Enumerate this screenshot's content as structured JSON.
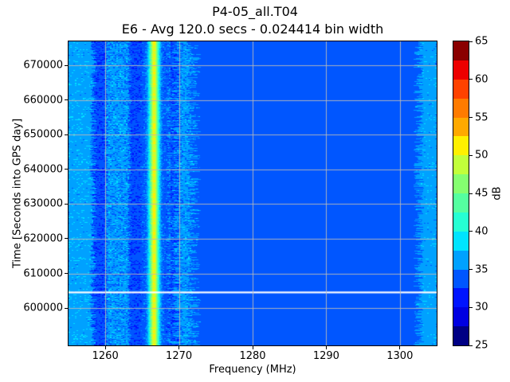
{
  "figure": {
    "title": "P4-05_all.T04"
  },
  "chart_data": {
    "type": "heatmap",
    "title": "E6 - Avg 120.0 secs - 0.024414 bin width",
    "xlabel": "Frequency (MHz)",
    "ylabel": "Time [Seconds into GPS day]",
    "x_range": [
      1255.0,
      1305.0
    ],
    "y_range": [
      589200,
      677000
    ],
    "xticks": [
      1260,
      1270,
      1280,
      1290,
      1300
    ],
    "yticks": [
      600000,
      610000,
      620000,
      630000,
      640000,
      650000,
      660000,
      670000
    ],
    "grid": true,
    "grid_color": "#b9b9b9",
    "background_level_db": 33.6,
    "colorbar": {
      "label": "dB",
      "vmin": 25,
      "vmax": 65,
      "ticks": [
        25,
        30,
        35,
        40,
        45,
        50,
        55,
        60,
        65
      ],
      "levels": 16,
      "colors": [
        "#000084",
        "#0000e1",
        "#0014ff",
        "#0056ff",
        "#00a1ff",
        "#00e4ff",
        "#26ffd3",
        "#55ffa0",
        "#85ff70",
        "#c2ff3a",
        "#fff000",
        "#ffa900",
        "#ff7b00",
        "#ff4200",
        "#ed0000",
        "#8a0000"
      ]
    },
    "bands": [
      {
        "name": "main-signal",
        "from": 1265.0,
        "to": 1268.3,
        "base": 33.8,
        "noise": 1.5,
        "edge_jitter": 0.25,
        "gaussian": {
          "center": 1266.62,
          "sigma": 0.46,
          "peak": 50.5,
          "peak_row_variation": 1.1
        }
      },
      {
        "name": "intermittent-line-1268.5",
        "from": 1268.35,
        "to": 1268.8,
        "base": 35.6,
        "noise": 1.6,
        "intermittent": 0.5
      },
      {
        "name": "noise-band-1260-1263",
        "from": 1260.25,
        "to": 1263.1,
        "base": 35.9,
        "noise": 1.9,
        "edge_jitter": 0.3
      },
      {
        "name": "noise-band-1270-1272",
        "from": 1270.15,
        "to": 1271.5,
        "base": 36.0,
        "noise": 1.7,
        "edge_jitter": 1.0
      },
      {
        "name": "left-edge-band",
        "from": 1254.9,
        "to": 1258.1,
        "base": 36.4,
        "noise": 1.3,
        "edge_jitter": 0.5
      },
      {
        "name": "right-edge-band",
        "from": 1302.9,
        "to": 1305.1,
        "base": 36.3,
        "noise": 1.2,
        "edge_jitter": 0.7
      },
      {
        "name": "dark-stripe-1258-1260",
        "from": 1258.1,
        "to": 1260.25,
        "base": 32.9,
        "noise": 0.8
      },
      {
        "name": "dark-stripe-1263-1265",
        "from": 1263.1,
        "to": 1265.0,
        "base": 32.9,
        "noise": 0.8
      },
      {
        "name": "dark-stripe-1269-1270",
        "from": 1268.8,
        "to": 1270.15,
        "base": 32.9,
        "noise": 0.8
      },
      {
        "name": "quiet-zone",
        "from": 1271.5,
        "to": 1302.9,
        "base": 33.6,
        "noise": 0.45
      }
    ],
    "data_gaps": [
      {
        "time": 604500,
        "span_s": 500,
        "color": "#ffffff"
      }
    ]
  }
}
